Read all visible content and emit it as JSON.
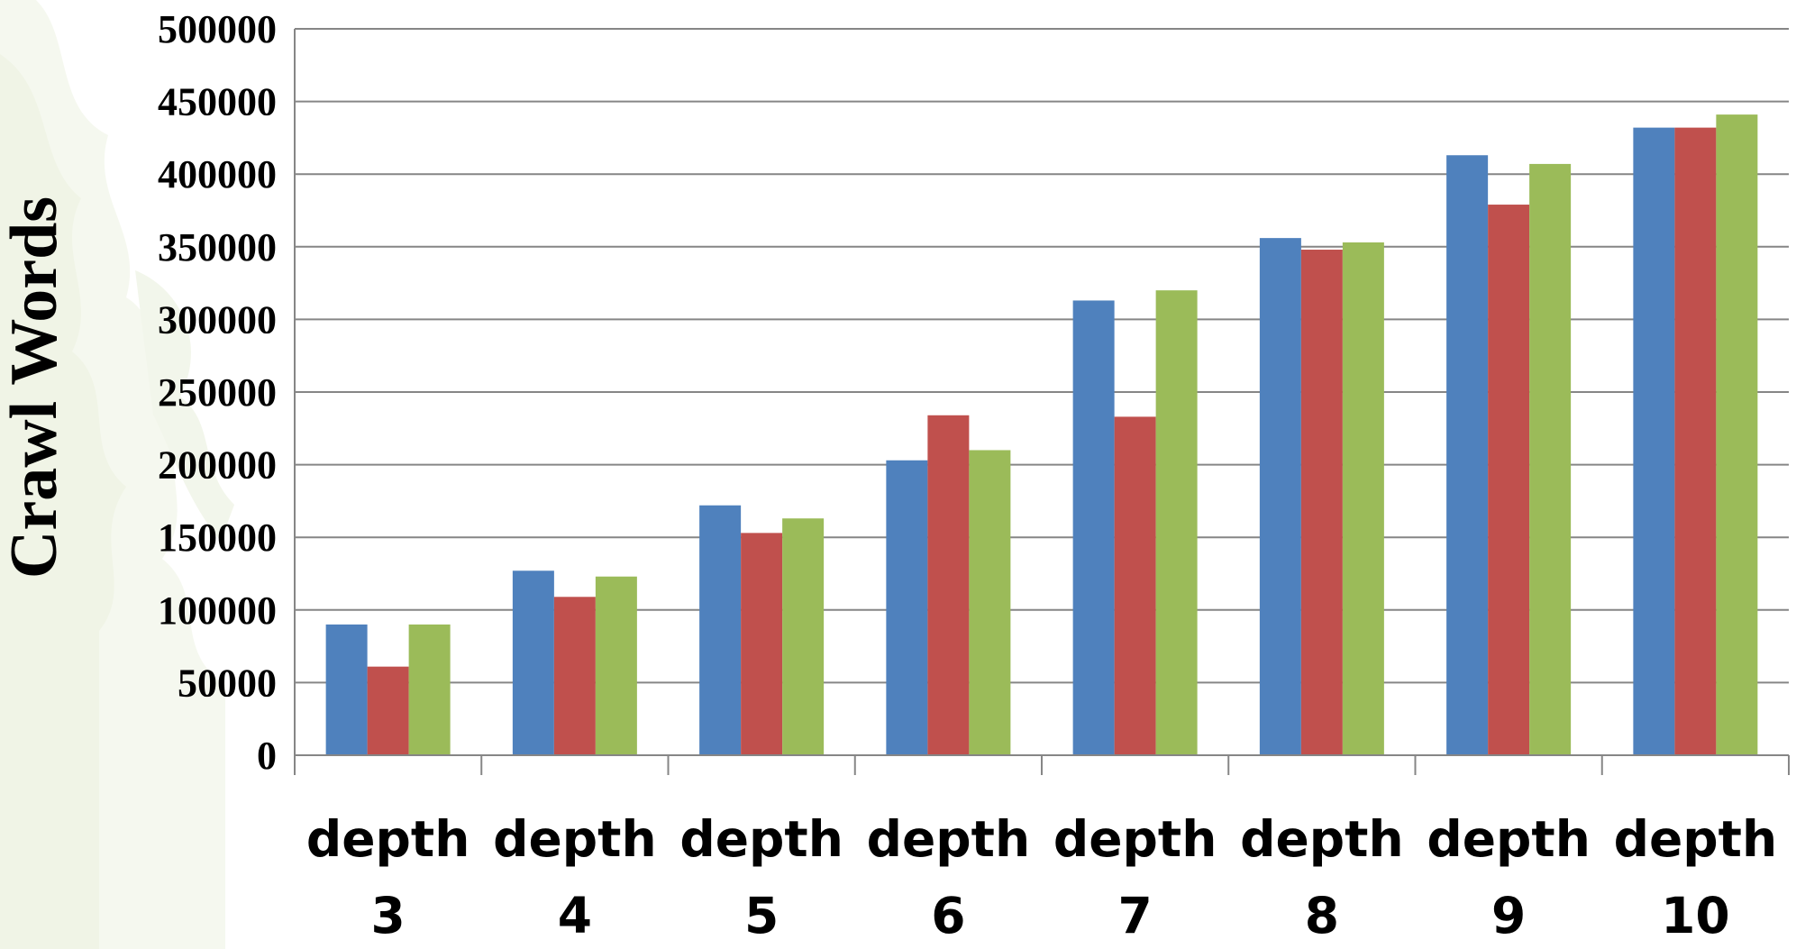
{
  "chart_data": {
    "type": "bar",
    "title": "",
    "xlabel": "",
    "ylabel": "Crawl Words",
    "categories": [
      [
        "depth",
        "3"
      ],
      [
        "depth",
        "4"
      ],
      [
        "depth",
        "5"
      ],
      [
        "depth",
        "6"
      ],
      [
        "depth",
        "7"
      ],
      [
        "depth",
        "8"
      ],
      [
        "depth",
        "9"
      ],
      [
        "depth",
        "10"
      ]
    ],
    "series": [
      {
        "color": "#4F81BD",
        "values": [
          90000,
          127000,
          172000,
          203000,
          313000,
          356000,
          413000,
          432000
        ]
      },
      {
        "color": "#C0504D",
        "values": [
          61000,
          109000,
          153000,
          234000,
          233000,
          348000,
          379000,
          432000
        ]
      },
      {
        "color": "#9BBB59",
        "values": [
          90000,
          123000,
          163000,
          210000,
          320000,
          353000,
          407000,
          441000
        ]
      }
    ],
    "ylim": [
      0,
      500000
    ],
    "yticks": [
      "0",
      "50000",
      "100000",
      "150000",
      "200000",
      "250000",
      "300000",
      "350000",
      "400000",
      "450000",
      "500000"
    ],
    "grid": true,
    "legend": "none",
    "background": "faint green tree illustration on the left side"
  }
}
